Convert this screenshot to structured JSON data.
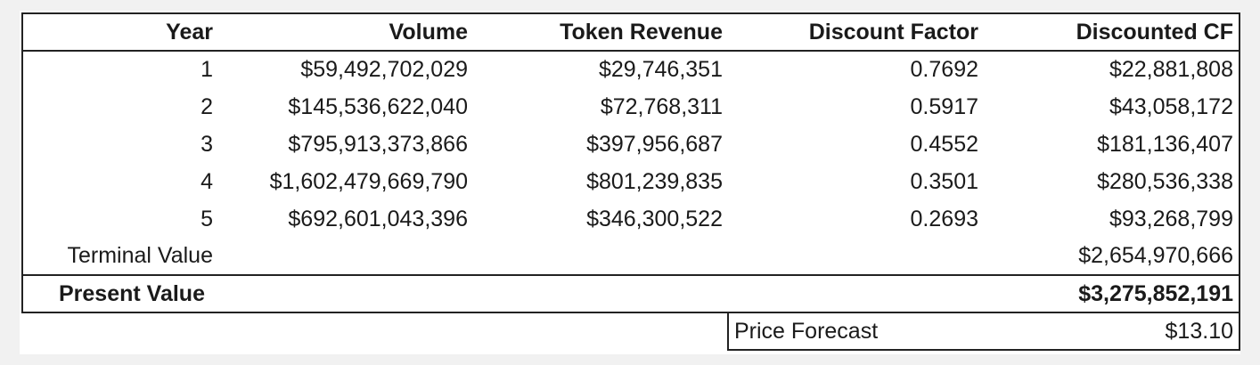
{
  "table": {
    "headers": [
      "Year",
      "Volume",
      "Token Revenue",
      "Discount Factor",
      "Discounted CF"
    ],
    "rows": [
      [
        "1",
        "$59,492,702,029",
        "$29,746,351",
        "0.7692",
        "$22,881,808"
      ],
      [
        "2",
        "$145,536,622,040",
        "$72,768,311",
        "0.5917",
        "$43,058,172"
      ],
      [
        "3",
        "$795,913,373,866",
        "$397,956,687",
        "0.4552",
        "$181,136,407"
      ],
      [
        "4",
        "$1,602,479,669,790",
        "$801,239,835",
        "0.3501",
        "$280,536,338"
      ],
      [
        "5",
        "$692,601,043,396",
        "$346,300,522",
        "0.2693",
        "$93,268,799"
      ]
    ],
    "terminal_value": {
      "label": "Terminal Value",
      "value": "$2,654,970,666"
    },
    "present_value": {
      "label": "Present Value",
      "value": "$3,275,852,191"
    },
    "price_forecast": {
      "label": "Price Forecast",
      "value": "$13.10"
    }
  }
}
